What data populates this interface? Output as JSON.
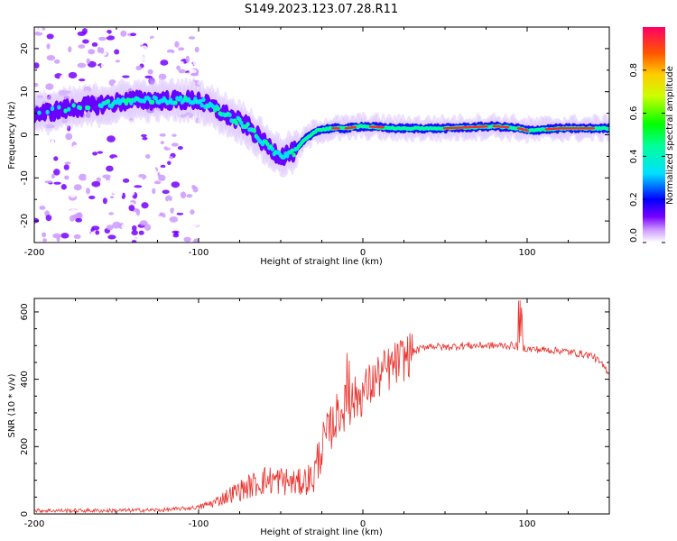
{
  "title": "S149.2023.123.07.28.R11",
  "chart_data": [
    {
      "type": "heatmap",
      "name": "spectrogram",
      "xlabel": "Height of straight line (km)",
      "ylabel": "Frequency (Hz)",
      "xlim": [
        -200,
        150
      ],
      "ylim": [
        -25,
        25
      ],
      "x_ticks": [
        "-200",
        "-100",
        "0",
        "100"
      ],
      "y_ticks": [
        "20",
        "10",
        "0",
        "-10",
        "-20"
      ],
      "colorbar": {
        "label": "Normalized spectral amplitude",
        "range": [
          0,
          1
        ],
        "ticks": [
          "0.0",
          "0.2",
          "0.4",
          "0.6",
          "0.8"
        ]
      },
      "ridge": {
        "x": [
          -195,
          -180,
          -160,
          -140,
          -120,
          -100,
          -85,
          -70,
          -60,
          -50,
          -42,
          -35,
          -28,
          -20,
          -10,
          0,
          20,
          50,
          80,
          95,
          100,
          120,
          150
        ],
        "frequency_hz": [
          5,
          6,
          7,
          8,
          8,
          8,
          5,
          2,
          -2,
          -5,
          -4,
          -1,
          1,
          1.5,
          1.5,
          2,
          1.5,
          1.5,
          2,
          1.5,
          1,
          1.5,
          1.5
        ]
      }
    },
    {
      "type": "line",
      "name": "snr",
      "xlabel": "Height of straight line (km)",
      "ylabel": "SNR (10 * v/v)",
      "xlim": [
        -200,
        150
      ],
      "ylim": [
        0,
        640
      ],
      "x_ticks": [
        "-200",
        "-100",
        "0",
        "100"
      ],
      "y_ticks": [
        "0",
        "200",
        "400",
        "600"
      ],
      "series": [
        {
          "name": "SNR",
          "color": "#e8302a",
          "x": [
            -200,
            -150,
            -120,
            -100,
            -90,
            -80,
            -70,
            -60,
            -50,
            -40,
            -30,
            -25,
            -20,
            -15,
            -10,
            -5,
            0,
            10,
            20,
            30,
            40,
            50,
            60,
            80,
            90,
            95,
            100,
            120,
            140,
            150
          ],
          "y": [
            10,
            10,
            12,
            20,
            35,
            60,
            80,
            100,
            100,
            90,
            110,
            200,
            250,
            300,
            320,
            340,
            360,
            410,
            445,
            480,
            500,
            495,
            500,
            500,
            500,
            500,
            490,
            485,
            470,
            420
          ]
        }
      ]
    }
  ]
}
